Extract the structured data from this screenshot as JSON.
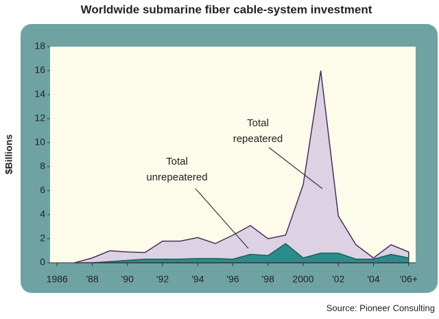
{
  "chart_data": {
    "type": "area",
    "title": "Worldwide submarine fiber cable-system investment",
    "y_label": "$Billions",
    "source": "Source: Pioneer Consulting",
    "x": [
      1987,
      1988,
      1989,
      1990,
      1991,
      1992,
      1993,
      1994,
      1995,
      1996,
      1997,
      1998,
      1999,
      2000,
      2001,
      2002,
      2003,
      2004,
      2005,
      2006
    ],
    "series": [
      {
        "label": [
          "Total",
          "repeatered"
        ],
        "color": "#dcd2e4",
        "edge": "#4a2d5c",
        "values": [
          0,
          0.4,
          1.0,
          0.9,
          0.85,
          1.8,
          1.8,
          2.1,
          1.6,
          2.3,
          3.1,
          2.0,
          2.3,
          6.5,
          16.0,
          3.9,
          1.5,
          0.4,
          1.5,
          0.9
        ]
      },
      {
        "label": [
          "Total",
          "unrepeatered"
        ],
        "color": "#2b8c8c",
        "edge": "#1d5e5e",
        "values": [
          null,
          0,
          0.1,
          0.2,
          0.3,
          0.3,
          0.3,
          0.35,
          0.35,
          0.3,
          0.7,
          0.6,
          1.6,
          0.4,
          0.8,
          0.8,
          0.3,
          0.3,
          0.7,
          0.4
        ]
      }
    ],
    "xlim": [
      1985.6,
      2006.4
    ],
    "ylim": [
      0,
      18
    ],
    "yticks": [
      0,
      2,
      4,
      6,
      8,
      10,
      12,
      14,
      16,
      18
    ],
    "xticks": [
      1986,
      {
        "value": 1988,
        "label": "'88"
      },
      {
        "value": 1990,
        "label": "'90"
      },
      {
        "value": 1992,
        "label": "'92"
      },
      {
        "value": 1994,
        "label": "'94"
      },
      {
        "value": 1996,
        "label": "'96"
      },
      {
        "value": 1998,
        "label": "'98"
      },
      2000,
      {
        "value": 2002,
        "label": "'02"
      },
      {
        "value": 2004,
        "label": "'04"
      },
      {
        "value": 2006,
        "label": "'06+"
      }
    ]
  }
}
